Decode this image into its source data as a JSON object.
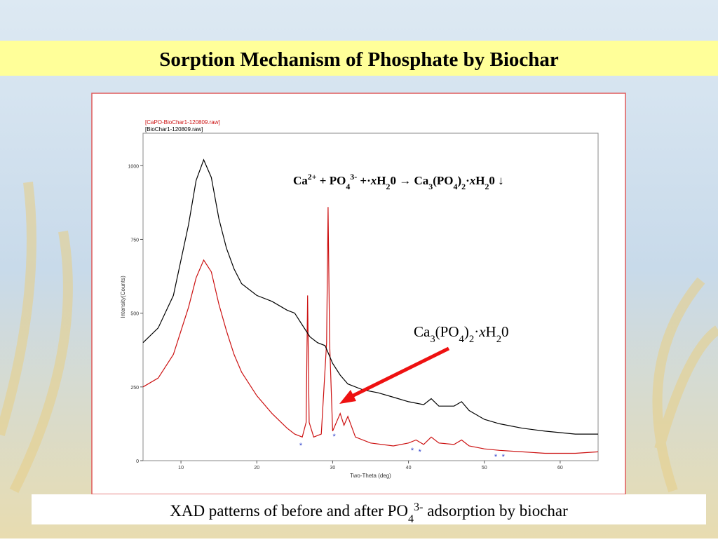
{
  "slide_title": "Sorption Mechanism of Phosphate by Biochar",
  "caption": [
    {
      "text": "XAD patterns of before and after PO"
    },
    {
      "text": "4",
      "sub": true
    },
    {
      "text": "3-",
      "sup": true
    },
    {
      "text": " adsorption by biochar"
    }
  ],
  "chart_data": {
    "type": "line",
    "xlabel": "Two-Theta (deg)",
    "ylabel": "Intensity(Counts)",
    "xlim": [
      5,
      65
    ],
    "ylim": [
      0,
      1110
    ],
    "xticks": [
      10,
      20,
      30,
      40,
      50,
      60
    ],
    "yticks": [
      0,
      250,
      500,
      750,
      1000
    ],
    "series": [
      {
        "name": "[CaPO-BioChar1-120809.raw]",
        "color": "#cc1111",
        "x": [
          5,
          7,
          9,
          11,
          12,
          13,
          14,
          15,
          16,
          17,
          18,
          20,
          22,
          24,
          25,
          26,
          26.5,
          26.7,
          26.9,
          27.5,
          28.5,
          29.2,
          29.4,
          29.6,
          30,
          31,
          31.5,
          32,
          33,
          35,
          38,
          40,
          41,
          42,
          43,
          44,
          46,
          47,
          48,
          50,
          52,
          55,
          58,
          60,
          62,
          65
        ],
        "values": [
          250,
          280,
          360,
          520,
          620,
          680,
          640,
          530,
          440,
          360,
          300,
          220,
          160,
          110,
          90,
          80,
          130,
          560,
          130,
          80,
          90,
          400,
          860,
          400,
          100,
          160,
          120,
          150,
          80,
          60,
          50,
          60,
          70,
          55,
          80,
          60,
          55,
          70,
          50,
          40,
          35,
          30,
          25,
          25,
          25,
          30
        ]
      },
      {
        "name": "[BioChar1-120809.raw]",
        "color": "#000000",
        "x": [
          5,
          7,
          9,
          11,
          12,
          13,
          14,
          15,
          16,
          17,
          18,
          20,
          22,
          24,
          25,
          26,
          27,
          28,
          29,
          30,
          31,
          32,
          34,
          36,
          38,
          40,
          42,
          43,
          44,
          46,
          47,
          48,
          50,
          52,
          55,
          58,
          60,
          62,
          65
        ],
        "values": [
          400,
          450,
          560,
          800,
          950,
          1020,
          960,
          820,
          720,
          650,
          600,
          560,
          540,
          510,
          500,
          460,
          420,
          400,
          390,
          330,
          290,
          260,
          240,
          230,
          215,
          200,
          190,
          210,
          185,
          185,
          200,
          170,
          140,
          125,
          110,
          100,
          95,
          90,
          90
        ]
      }
    ],
    "equation": [
      {
        "text": "Ca"
      },
      {
        "text": "2+",
        "sup": true
      },
      {
        "text": " + PO"
      },
      {
        "text": "4",
        "sub": true
      },
      {
        "text": "3-",
        "sup": true
      },
      {
        "text": " +·"
      },
      {
        "text": "x",
        "italic": true
      },
      {
        "text": "H"
      },
      {
        "text": "2",
        "sub": true
      },
      {
        "text": "0 → Ca"
      },
      {
        "text": "3",
        "sub": true
      },
      {
        "text": "(PO"
      },
      {
        "text": "4",
        "sub": true
      },
      {
        "text": ")"
      },
      {
        "text": "2",
        "sub": true
      },
      {
        "text": "·"
      },
      {
        "text": "x",
        "italic": true
      },
      {
        "text": "H"
      },
      {
        "text": "2",
        "sub": true
      },
      {
        "text": "0 ↓"
      }
    ],
    "peak_label": [
      {
        "text": "Ca"
      },
      {
        "text": "3",
        "sub": true
      },
      {
        "text": "(PO"
      },
      {
        "text": "4",
        "sub": true
      },
      {
        "text": ")"
      },
      {
        "text": "2",
        "sub": true
      },
      {
        "text": "·"
      },
      {
        "text": "x",
        "italic": true
      },
      {
        "text": "H"
      },
      {
        "text": "2",
        "sub": true
      },
      {
        "text": "0"
      }
    ],
    "annotation_color": "#3344cc",
    "annotations": [
      {
        "text": "*",
        "x": 25.8,
        "y": 57
      },
      {
        "text": "*",
        "x": 30.2,
        "y": 88
      },
      {
        "text": "*",
        "x": 40.5,
        "y": 40
      },
      {
        "text": "*",
        "x": 41.5,
        "y": 36
      },
      {
        "text": "*",
        "x": 51.5,
        "y": 19
      },
      {
        "text": "*",
        "x": 52.5,
        "y": 19
      }
    ]
  }
}
